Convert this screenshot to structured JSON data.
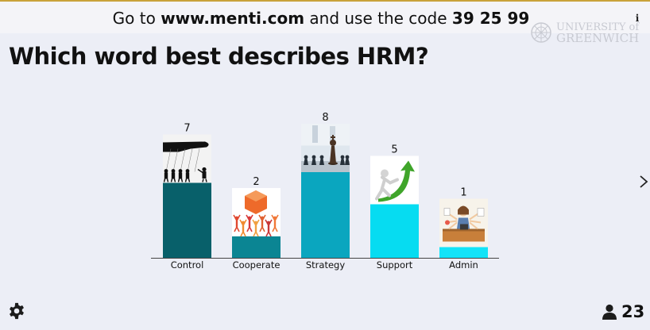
{
  "banner": {
    "prefix": "Go to ",
    "url": "www.menti.com",
    "middle": " and use the code ",
    "code": "39 25 99"
  },
  "logo": {
    "line1": "UNIVERSITY of",
    "line2": "GREENWICH",
    "color": "#c8cad2"
  },
  "question": "Which word best describes HRM?",
  "participants": {
    "count": "23",
    "icon": "user-icon"
  },
  "controls": {
    "settings_icon": "gear-icon",
    "next_icon": "chevron-right-icon",
    "info_icon": "info-icon"
  },
  "chart_data": {
    "type": "bar",
    "categories": [
      "Control",
      "Cooperate",
      "Strategy",
      "Support",
      "Admin"
    ],
    "values": [
      7,
      2,
      8,
      5,
      1
    ],
    "colors": [
      "#08606a",
      "#0b8593",
      "#0aa6bf",
      "#06dcf1",
      "#13e3f8"
    ],
    "images": [
      "puppet-hand-image",
      "team-lifting-cube-image",
      "chess-pieces-image",
      "figure-pushing-arrow-image",
      "busy-office-worker-image"
    ],
    "ylim": [
      0,
      8
    ]
  }
}
